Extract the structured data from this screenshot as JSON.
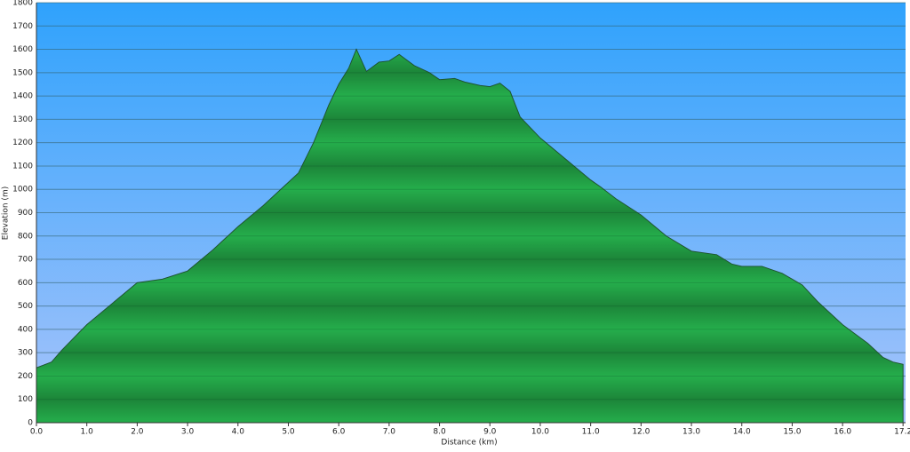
{
  "chart_data": {
    "type": "area",
    "x_label": "Distance   (km)",
    "y_label": "Elevation (m)",
    "x": [
      0,
      0.3,
      0.5,
      1.0,
      1.5,
      2.0,
      2.5,
      3.0,
      3.5,
      4.0,
      4.5,
      5.0,
      5.2,
      5.5,
      5.8,
      6.0,
      6.2,
      6.35,
      6.55,
      6.8,
      7.0,
      7.2,
      7.5,
      7.8,
      8.0,
      8.3,
      8.5,
      8.8,
      9.0,
      9.2,
      9.4,
      9.6,
      10.0,
      10.5,
      11.0,
      11.2,
      11.5,
      12.0,
      12.5,
      13.0,
      13.5,
      13.8,
      14.0,
      14.4,
      14.8,
      15.2,
      15.5,
      16.0,
      16.5,
      16.8,
      17.0,
      17.2
    ],
    "series": [
      {
        "name": "Elevation",
        "color": "#22a84a",
        "values": [
          235,
          260,
          310,
          420,
          510,
          600,
          615,
          650,
          740,
          840,
          930,
          1030,
          1070,
          1200,
          1360,
          1450,
          1520,
          1600,
          1505,
          1545,
          1550,
          1578,
          1530,
          1500,
          1470,
          1475,
          1460,
          1445,
          1440,
          1455,
          1420,
          1310,
          1220,
          1130,
          1040,
          1010,
          960,
          890,
          800,
          735,
          720,
          680,
          670,
          670,
          640,
          590,
          520,
          420,
          340,
          280,
          260,
          250
        ]
      }
    ],
    "xlim": [
      0,
      17.25
    ],
    "ylim": [
      0,
      1800
    ],
    "xticks": [
      {
        "value": 0,
        "label": "0.0"
      },
      {
        "value": 1,
        "label": "1.0"
      },
      {
        "value": 2,
        "label": "2.0"
      },
      {
        "value": 3,
        "label": "3.0"
      },
      {
        "value": 4,
        "label": "4.0"
      },
      {
        "value": 5,
        "label": "5.0"
      },
      {
        "value": 6,
        "label": "6.0"
      },
      {
        "value": 7,
        "label": "7.0"
      },
      {
        "value": 8,
        "label": "8.0"
      },
      {
        "value": 9,
        "label": "9.0"
      },
      {
        "value": 10,
        "label": "10.0"
      },
      {
        "value": 11,
        "label": "11.0"
      },
      {
        "value": 12,
        "label": "12.0"
      },
      {
        "value": 13,
        "label": "13.0"
      },
      {
        "value": 14,
        "label": "14.0"
      },
      {
        "value": 15,
        "label": "15.0"
      },
      {
        "value": 16,
        "label": "16.0"
      },
      {
        "value": 17.2,
        "label": "17.2"
      }
    ],
    "yticks": [
      0,
      100,
      200,
      300,
      400,
      500,
      600,
      700,
      800,
      900,
      1000,
      1100,
      1200,
      1300,
      1400,
      1500,
      1600,
      1700,
      1800
    ],
    "grid": true
  }
}
